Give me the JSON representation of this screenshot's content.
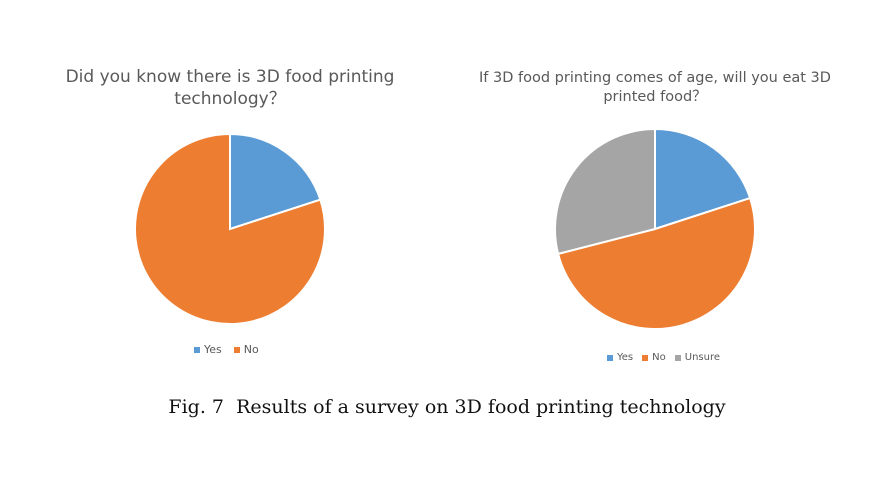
{
  "colors": {
    "yes": "#5b9bd5",
    "no": "#ed7d31",
    "unsure": "#a5a5a5"
  },
  "chart_data": [
    {
      "type": "pie",
      "title": "Did you know there is 3D food printing technology？",
      "legend_position": "bottom",
      "categories": [
        "Yes",
        "No"
      ],
      "values": [
        20,
        80
      ]
    },
    {
      "type": "pie",
      "title": "If 3D food printing comes of age, will you eat 3D printed food？",
      "legend_position": "bottom",
      "categories": [
        "Yes",
        "No",
        "Unsure"
      ],
      "values": [
        20,
        51,
        29
      ]
    }
  ],
  "caption": "Fig. 7  Results of a survey on 3D food printing technology"
}
